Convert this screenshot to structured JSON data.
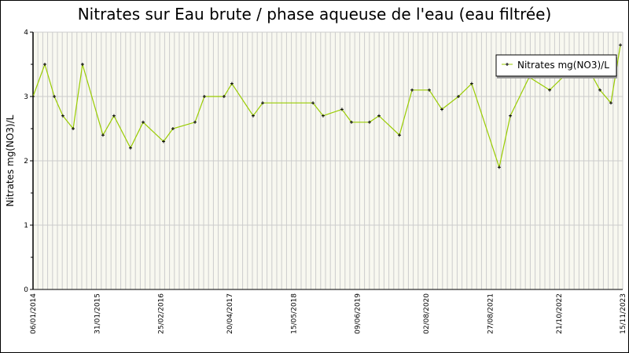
{
  "chart_data": {
    "type": "line",
    "title": "Nitrates sur Eau brute / phase aqueuse de l'eau (eau filtrée)",
    "xlabel": "",
    "ylabel": "Nitrates mg(NO3)/L",
    "xlim": [
      "2014-01-06",
      "2023-11-15"
    ],
    "ylim": [
      0,
      4
    ],
    "yticks": [
      "0",
      "1",
      "2",
      "3",
      "4"
    ],
    "xticks": [
      {
        "date": "2014-01-06",
        "label": "06/01/2014"
      },
      {
        "date": "2015-01-31",
        "label": "31/01/2015"
      },
      {
        "date": "2016-02-25",
        "label": "25/02/2016"
      },
      {
        "date": "2017-04-20",
        "label": "20/04/2017"
      },
      {
        "date": "2018-05-15",
        "label": "15/05/2018"
      },
      {
        "date": "2019-06-09",
        "label": "09/06/2019"
      },
      {
        "date": "2020-08-02",
        "label": "02/08/2020"
      },
      {
        "date": "2021-08-27",
        "label": "27/08/2021"
      },
      {
        "date": "2022-10-21",
        "label": "21/10/2022"
      },
      {
        "date": "2023-11-15",
        "label": "15/11/2023"
      }
    ],
    "grid": true,
    "legend_position": "top-right",
    "colors": {
      "line": "#99cc00",
      "marker": "#000000",
      "plot_bg": "#f8f8f0",
      "grid": "#cccccc"
    },
    "series": [
      {
        "name": "Nitrates mg(NO3)/L",
        "x": [
          "2014-01-06",
          "2014-03-19",
          "2014-05-16",
          "2014-07-07",
          "2014-09-08",
          "2014-11-04",
          "2015-03-09",
          "2015-05-15",
          "2015-08-24",
          "2015-11-09",
          "2016-03-13",
          "2016-05-09",
          "2016-09-21",
          "2016-11-17",
          "2017-03-17",
          "2017-05-04",
          "2017-09-11",
          "2017-11-08",
          "2018-09-11",
          "2018-11-12",
          "2019-03-07",
          "2019-05-04",
          "2019-08-22",
          "2019-10-19",
          "2020-02-21",
          "2020-05-08",
          "2020-08-21",
          "2020-11-06",
          "2021-02-15",
          "2021-05-07",
          "2021-10-22",
          "2021-12-29",
          "2022-04-23",
          "2022-08-26",
          "2023-03-15",
          "2023-06-29",
          "2023-09-04",
          "2023-11-01"
        ],
        "values": [
          3.0,
          3.5,
          3.0,
          2.7,
          2.5,
          3.5,
          2.4,
          2.7,
          2.2,
          2.6,
          2.3,
          2.5,
          2.6,
          3.0,
          3.0,
          3.2,
          2.7,
          2.9,
          2.9,
          2.7,
          2.8,
          2.6,
          2.6,
          2.7,
          2.4,
          3.1,
          3.1,
          2.8,
          3.0,
          3.2,
          1.9,
          2.7,
          3.3,
          3.1,
          3.6,
          3.1,
          2.9,
          3.8
        ]
      }
    ]
  }
}
